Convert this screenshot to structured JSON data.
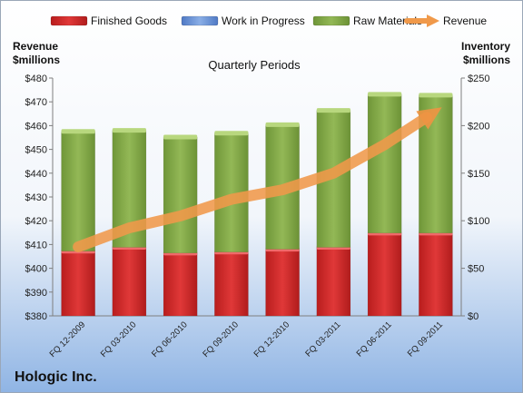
{
  "chart_data": {
    "type": "bar",
    "stacked": true,
    "title": "Quarterly Periods",
    "company": "Hologic Inc.",
    "left_axis": {
      "label_line1": "Revenue",
      "label_line2": "$millions",
      "min": 380,
      "max": 480,
      "step": 10,
      "prefix": "$"
    },
    "right_axis": {
      "label_line1": "Inventory",
      "label_line2": "$millions",
      "min": 0,
      "max": 250,
      "step": 50,
      "prefix": "$"
    },
    "categories": [
      "FQ 12-2009",
      "FQ 03-2010",
      "FQ 06-2010",
      "FQ 09-2010",
      "FQ 12-2010",
      "FQ 03-2011",
      "FQ 06-2011",
      "FQ 09-2011"
    ],
    "series": [
      {
        "name": "Finished Goods",
        "axis": "right",
        "color": "#d42a2a",
        "values": [
          68,
          72,
          66,
          67,
          70,
          72,
          87,
          87
        ]
      },
      {
        "name": "Work in Progress",
        "axis": "right",
        "color": "#6f93d6",
        "values": [
          0,
          0,
          0,
          0,
          0,
          0,
          0,
          0
        ]
      },
      {
        "name": "Raw Materials",
        "axis": "right",
        "color": "#87ad4a",
        "values": [
          126,
          123,
          122,
          125,
          131,
          144,
          146,
          145
        ]
      },
      {
        "name": "Revenue",
        "axis": "left",
        "type": "line",
        "color": "#f0994a",
        "values": [
          409,
          417,
          422,
          429,
          433,
          440,
          452,
          466
        ]
      }
    ],
    "legend_position": "top",
    "grid": false
  }
}
